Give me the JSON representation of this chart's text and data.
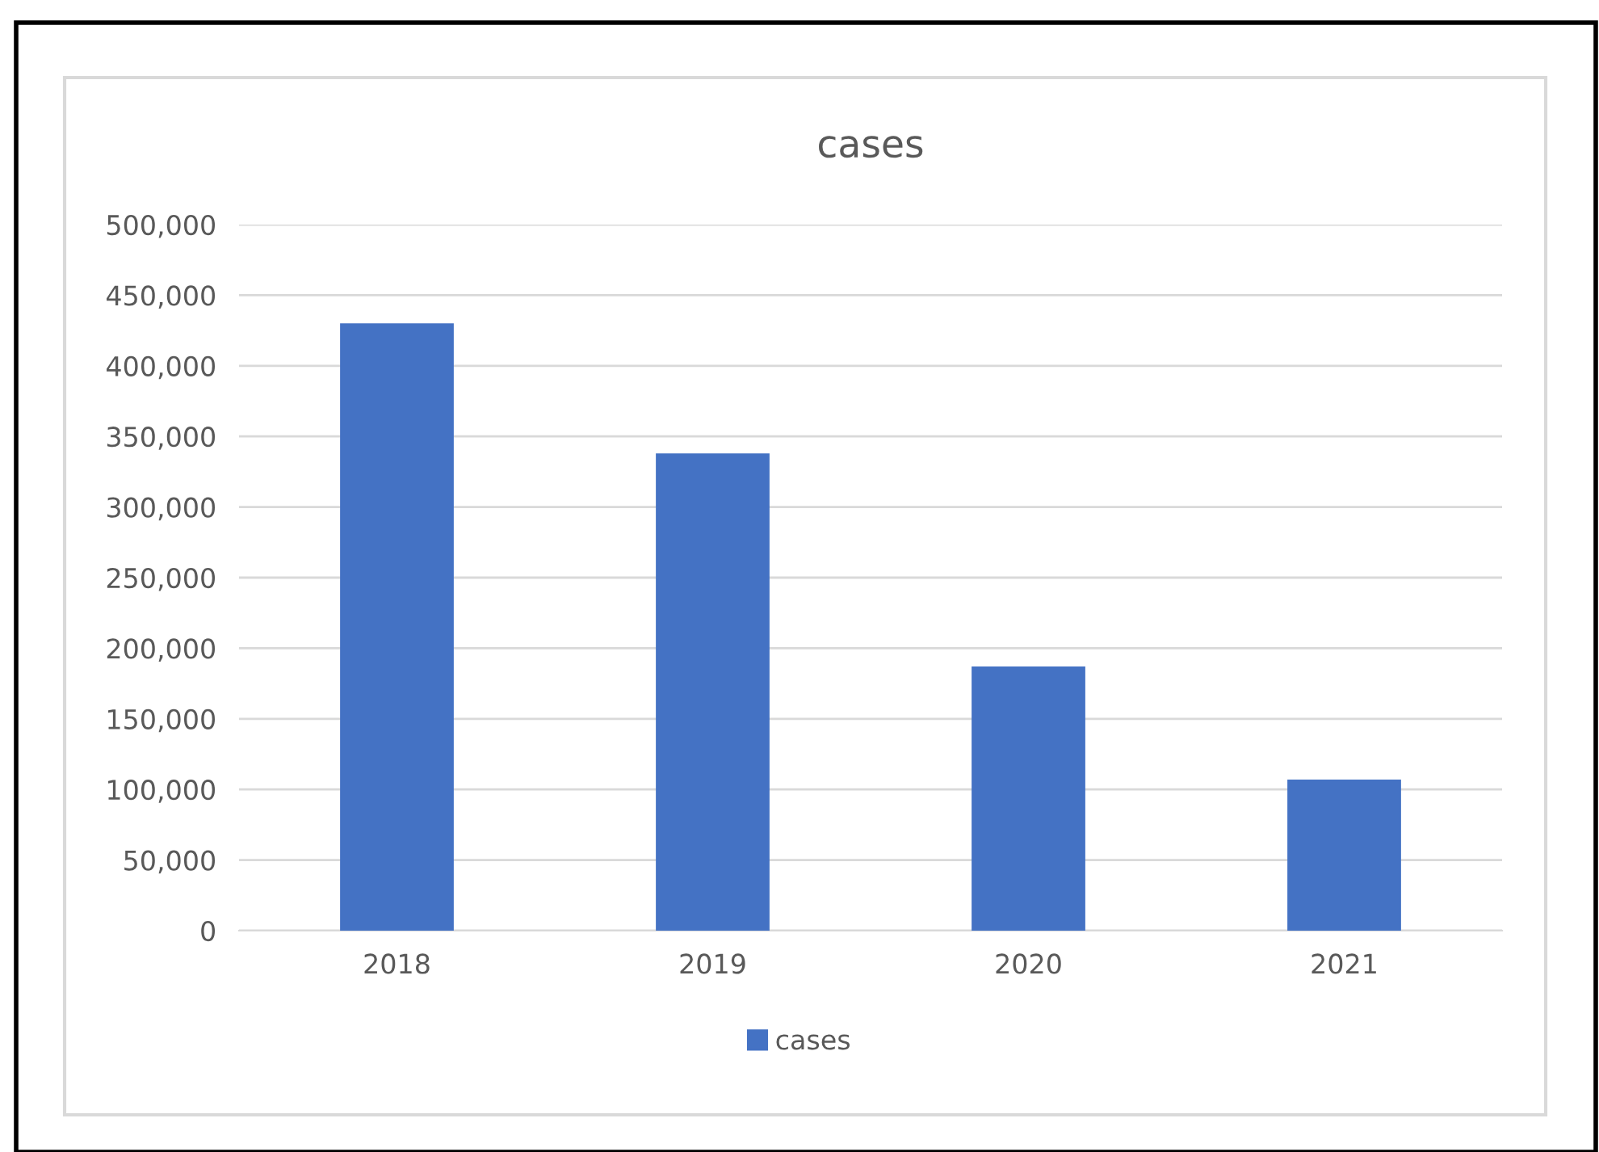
{
  "chart_data": {
    "type": "bar",
    "title": "cases",
    "categories": [
      "2018",
      "2019",
      "2020",
      "2021"
    ],
    "series": [
      {
        "name": "cases",
        "color": "#4472c4",
        "values": [
          430000,
          338000,
          187000,
          107000
        ]
      }
    ],
    "ylim": [
      0,
      500000
    ],
    "yticks": [
      {
        "value": 0,
        "label": "0"
      },
      {
        "value": 50000,
        "label": "50,000"
      },
      {
        "value": 100000,
        "label": "100,000"
      },
      {
        "value": 150000,
        "label": "150,000"
      },
      {
        "value": 200000,
        "label": "200,000"
      },
      {
        "value": 250000,
        "label": "250,000"
      },
      {
        "value": 300000,
        "label": "300,000"
      },
      {
        "value": 350000,
        "label": "350,000"
      },
      {
        "value": 400000,
        "label": "400,000"
      },
      {
        "value": 450000,
        "label": "450,000"
      },
      {
        "value": 500000,
        "label": "500,000"
      }
    ],
    "grid": "y",
    "legend": "bottom"
  }
}
